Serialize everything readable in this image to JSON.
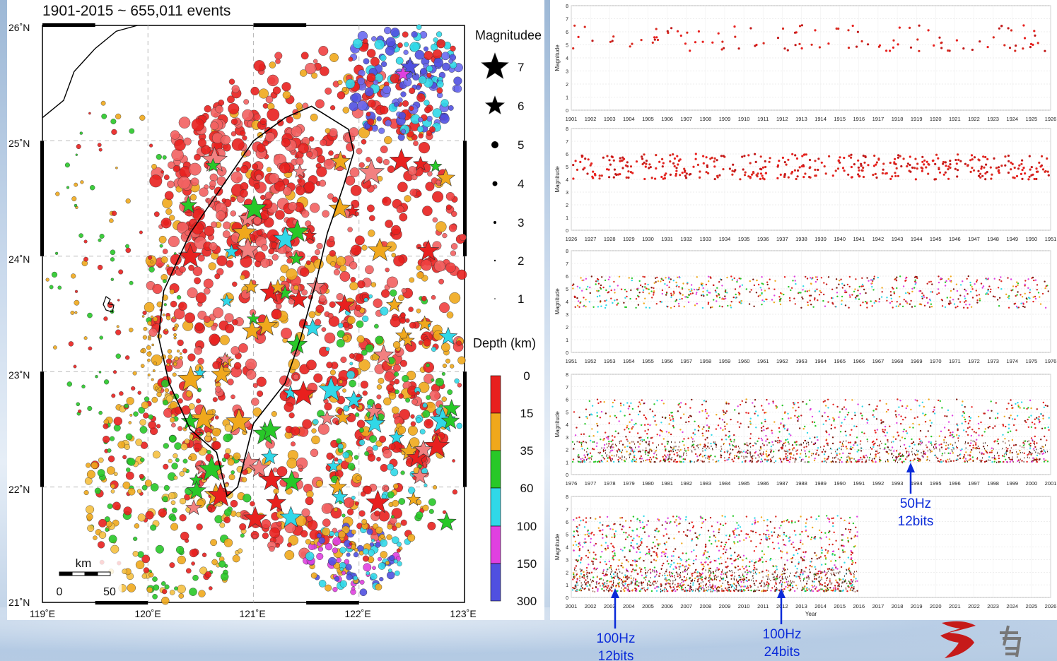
{
  "map": {
    "title": "1901-2015 ~ 655,011 events",
    "lat_labels": [
      "26˚N",
      "25˚N",
      "24˚N",
      "23˚N",
      "22˚N",
      "21˚N"
    ],
    "lon_labels": [
      "119˚E",
      "120˚E",
      "121˚E",
      "122˚E",
      "123˚E"
    ],
    "scale_label": "km",
    "scale_ticks": [
      "0",
      "50"
    ],
    "legend_mag_title": "Magnitudee",
    "mag_levels": [
      "7",
      "6",
      "5",
      "4",
      "3",
      "2",
      "1"
    ],
    "legend_depth_title": "Depth (km)",
    "depth_levels": [
      "0",
      "15",
      "35",
      "60",
      "100",
      "150",
      "300"
    ],
    "depth_colors": [
      "#e8201e",
      "#f0a81c",
      "#28c828",
      "#30d8e8",
      "#e040e0",
      "#5050e0"
    ]
  },
  "chart_data": [
    {
      "type": "scatter",
      "x_ticks": [
        "1901",
        "1902",
        "1903",
        "1904",
        "1905",
        "1906",
        "1907",
        "1908",
        "1909",
        "1910",
        "1911",
        "1912",
        "1913",
        "1914",
        "1915",
        "1916",
        "1917",
        "1918",
        "1919",
        "1920",
        "1921",
        "1922",
        "1923",
        "1924",
        "1925",
        "1926"
      ],
      "y_ticks": [
        "0",
        "1",
        "2",
        "3",
        "4",
        "5",
        "6",
        "7",
        "8"
      ],
      "ylabel": "Magnitude",
      "ylim": [
        0,
        8
      ],
      "xlabel": "",
      "magnitude_band": [
        4.5,
        6.5
      ]
    },
    {
      "type": "scatter",
      "x_ticks": [
        "1926",
        "1927",
        "1928",
        "1929",
        "1930",
        "1931",
        "1932",
        "1933",
        "1934",
        "1935",
        "1936",
        "1937",
        "1938",
        "1939",
        "1940",
        "1941",
        "1942",
        "1943",
        "1944",
        "1945",
        "1946",
        "1947",
        "1948",
        "1949",
        "1950",
        "1951"
      ],
      "y_ticks": [
        "0",
        "1",
        "2",
        "3",
        "4",
        "5",
        "6",
        "7",
        "8"
      ],
      "ylabel": "Magnitude",
      "ylim": [
        0,
        8
      ],
      "xlabel": "",
      "magnitude_band": [
        4,
        6
      ]
    },
    {
      "type": "scatter",
      "x_ticks": [
        "1951",
        "1952",
        "1953",
        "1954",
        "1955",
        "1956",
        "1957",
        "1958",
        "1959",
        "1960",
        "1961",
        "1962",
        "1963",
        "1964",
        "1965",
        "1966",
        "1967",
        "1968",
        "1969",
        "1970",
        "1971",
        "1972",
        "1973",
        "1974",
        "1975",
        "1976"
      ],
      "y_ticks": [
        "0",
        "1",
        "2",
        "3",
        "4",
        "5",
        "6",
        "7",
        "8"
      ],
      "ylabel": "Magnitude",
      "ylim": [
        0,
        8
      ],
      "xlabel": "",
      "magnitude_band": [
        3.5,
        6
      ]
    },
    {
      "type": "scatter",
      "x_ticks": [
        "1976",
        "1977",
        "1978",
        "1979",
        "1980",
        "1981",
        "1982",
        "1983",
        "1984",
        "1985",
        "1986",
        "1987",
        "1988",
        "1989",
        "1990",
        "1991",
        "1992",
        "1993",
        "1994",
        "1995",
        "1996",
        "1997",
        "1998",
        "1999",
        "2000",
        "2001"
      ],
      "y_ticks": [
        "0",
        "1",
        "2",
        "3",
        "4",
        "5",
        "6",
        "7",
        "8"
      ],
      "ylabel": "Magnitude",
      "ylim": [
        0,
        8
      ],
      "xlabel": "",
      "magnitude_band": [
        1,
        6
      ]
    },
    {
      "type": "scatter",
      "x_ticks": [
        "2001",
        "2002",
        "2003",
        "2004",
        "2005",
        "2006",
        "2007",
        "2008",
        "2009",
        "2010",
        "2011",
        "2012",
        "2013",
        "2014",
        "2015",
        "2016",
        "2017",
        "2018",
        "2019",
        "2020",
        "2021",
        "2022",
        "2023",
        "2024",
        "2025",
        "2026"
      ],
      "y_ticks": [
        "0",
        "1",
        "2",
        "3",
        "4",
        "5",
        "6",
        "7",
        "8"
      ],
      "ylabel": "Magnitude",
      "ylim": [
        0,
        8
      ],
      "xlabel": "Year",
      "magnitude_band": [
        0.5,
        6.5
      ]
    }
  ],
  "annotations": [
    {
      "line1": "50Hz",
      "line2": "12bits"
    },
    {
      "line1": "100Hz",
      "line2": "12bits"
    },
    {
      "line1": "100Hz",
      "line2": "24bits"
    }
  ]
}
